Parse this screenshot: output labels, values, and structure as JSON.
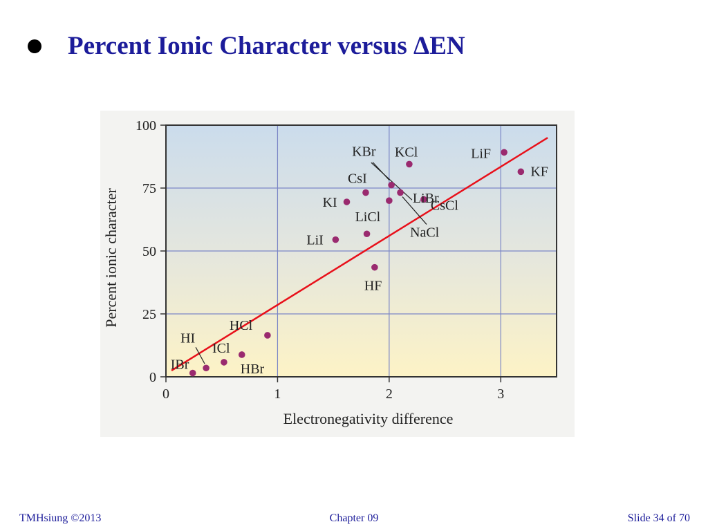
{
  "slide": {
    "title": "Percent Ionic Character versus ΔEN",
    "bullet_icon": "filled-circle"
  },
  "footer": {
    "left": "TMHsiung  ©2013",
    "center": "Chapter 09",
    "right": "Slide 34 of 70"
  },
  "chart_data": {
    "type": "scatter",
    "title": "",
    "xlabel": "Electronegativity difference",
    "ylabel": "Percent ionic character",
    "xlim": [
      0,
      3.5
    ],
    "ylim": [
      0,
      100
    ],
    "xticks": [
      0,
      1,
      2,
      3
    ],
    "yticks": [
      0,
      25,
      50,
      75,
      100
    ],
    "grid": true,
    "background": "gradient light-blue (top) to light-yellow (bottom)",
    "point_color": "#9a2a6f",
    "fit_line_color": "#e8101a",
    "points": [
      {
        "label": "IBr",
        "x": 0.24,
        "y": 1.5
      },
      {
        "label": "HI",
        "x": 0.36,
        "y": 3.5
      },
      {
        "label": "ICl",
        "x": 0.52,
        "y": 5.8
      },
      {
        "label": "HBr",
        "x": 0.68,
        "y": 8.8
      },
      {
        "label": "HCl",
        "x": 0.91,
        "y": 16.5
      },
      {
        "label": "LiI",
        "x": 1.52,
        "y": 54.5
      },
      {
        "label": "KI",
        "x": 1.62,
        "y": 69.5
      },
      {
        "label": "LiCl",
        "x": 1.8,
        "y": 56.8
      },
      {
        "label": "CsI",
        "x": 1.79,
        "y": 73.2
      },
      {
        "label": "HF",
        "x": 1.87,
        "y": 43.5
      },
      {
        "label": "LiBr",
        "x": 2.0,
        "y": 70.0
      },
      {
        "label": "KBr",
        "x": 2.02,
        "y": 76.2
      },
      {
        "label": "NaCl",
        "x": 2.1,
        "y": 73.2
      },
      {
        "label": "KCl",
        "x": 2.18,
        "y": 84.5
      },
      {
        "label": "CsCl",
        "x": 2.31,
        "y": 70.5
      },
      {
        "label": "LiF",
        "x": 3.03,
        "y": 89.2
      },
      {
        "label": "KF",
        "x": 3.18,
        "y": 81.5
      }
    ],
    "fit_line": {
      "x": [
        0.05,
        3.42
      ],
      "y": [
        2.5,
        95.0
      ]
    }
  }
}
